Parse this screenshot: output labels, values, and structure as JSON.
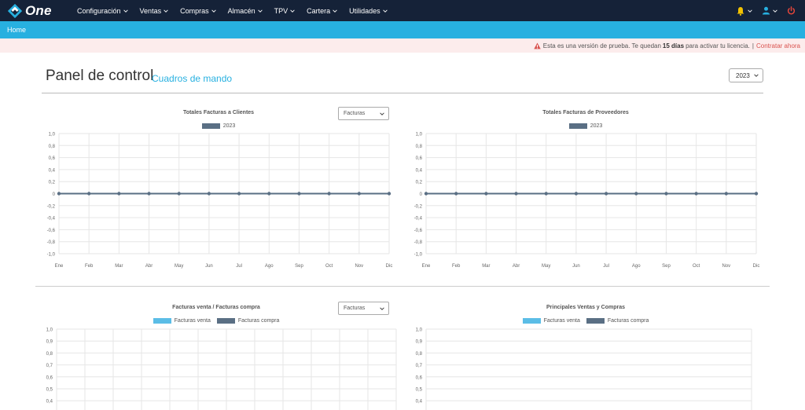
{
  "nav": {
    "brand": "One",
    "menu": [
      {
        "label": "Configuración"
      },
      {
        "label": "Ventas"
      },
      {
        "label": "Compras"
      },
      {
        "label": "Almacén"
      },
      {
        "label": "TPV"
      },
      {
        "label": "Cartera"
      },
      {
        "label": "Utilidades"
      }
    ],
    "icons": [
      "bell-icon",
      "user-icon",
      "power-icon"
    ]
  },
  "breadcrumb": {
    "home": "Home"
  },
  "notice": {
    "prefix": "Esta es una versión de prueba. Te quedan",
    "days": "15 días",
    "suffix": "para activar tu licencia.",
    "separator": "|",
    "cta": "Contratar ahora",
    "warn_color": "#d9534f"
  },
  "page": {
    "title": "Panel de control",
    "subtitle": "Cuadros de mando",
    "year_selected": "2023"
  },
  "colors": {
    "navbar": "#152238",
    "accent": "#27b0e0",
    "series_dark": "#5a6f84",
    "series_light": "#5bbde6"
  },
  "chart_data": [
    {
      "type": "line",
      "title": "Totales Facturas a Clientes",
      "filter": "Facturas",
      "categories": [
        "Ene",
        "Feb",
        "Mar",
        "Abr",
        "May",
        "Jun",
        "Jul",
        "Ago",
        "Sep",
        "Oct",
        "Nov",
        "Dic"
      ],
      "series": [
        {
          "name": "2023",
          "values": [
            0,
            0,
            0,
            0,
            0,
            0,
            0,
            0,
            0,
            0,
            0,
            0
          ]
        }
      ],
      "y_ticks": [
        "1,0",
        "0,8",
        "0,6",
        "0,4",
        "0,2",
        "0",
        "-0,2",
        "-0,4",
        "-0,6",
        "-0,8",
        "-1,0"
      ],
      "ylim": [
        -1,
        1
      ],
      "grid": true,
      "legend_position": "top"
    },
    {
      "type": "line",
      "title": "Totales Facturas de Proveedores",
      "categories": [
        "Ene",
        "Feb",
        "Mar",
        "Abr",
        "May",
        "Jun",
        "Jul",
        "Ago",
        "Sep",
        "Oct",
        "Nov",
        "Dic"
      ],
      "series": [
        {
          "name": "2023",
          "values": [
            0,
            0,
            0,
            0,
            0,
            0,
            0,
            0,
            0,
            0,
            0,
            0
          ]
        }
      ],
      "y_ticks": [
        "1,0",
        "0,8",
        "0,6",
        "0,4",
        "0,2",
        "0",
        "-0,2",
        "-0,4",
        "-0,6",
        "-0,8",
        "-1,0"
      ],
      "ylim": [
        -1,
        1
      ],
      "grid": true,
      "legend_position": "top"
    },
    {
      "type": "bar",
      "title": "Facturas venta / Facturas compra",
      "filter": "Facturas",
      "series": [
        {
          "name": "Facturas venta"
        },
        {
          "name": "Facturas compra"
        }
      ],
      "y_ticks": [
        "1,0",
        "0,9",
        "0,8",
        "0,7",
        "0,6",
        "0,5",
        "0,4"
      ],
      "grid": true,
      "legend_position": "top"
    },
    {
      "type": "bar",
      "title": "Principales Ventas y Compras",
      "series": [
        {
          "name": "Facturas venta"
        },
        {
          "name": "Facturas compra"
        }
      ],
      "y_ticks": [
        "1,0",
        "0,9",
        "0,8",
        "0,7",
        "0,6",
        "0,5",
        "0,4"
      ],
      "grid": true,
      "legend_position": "top"
    }
  ]
}
